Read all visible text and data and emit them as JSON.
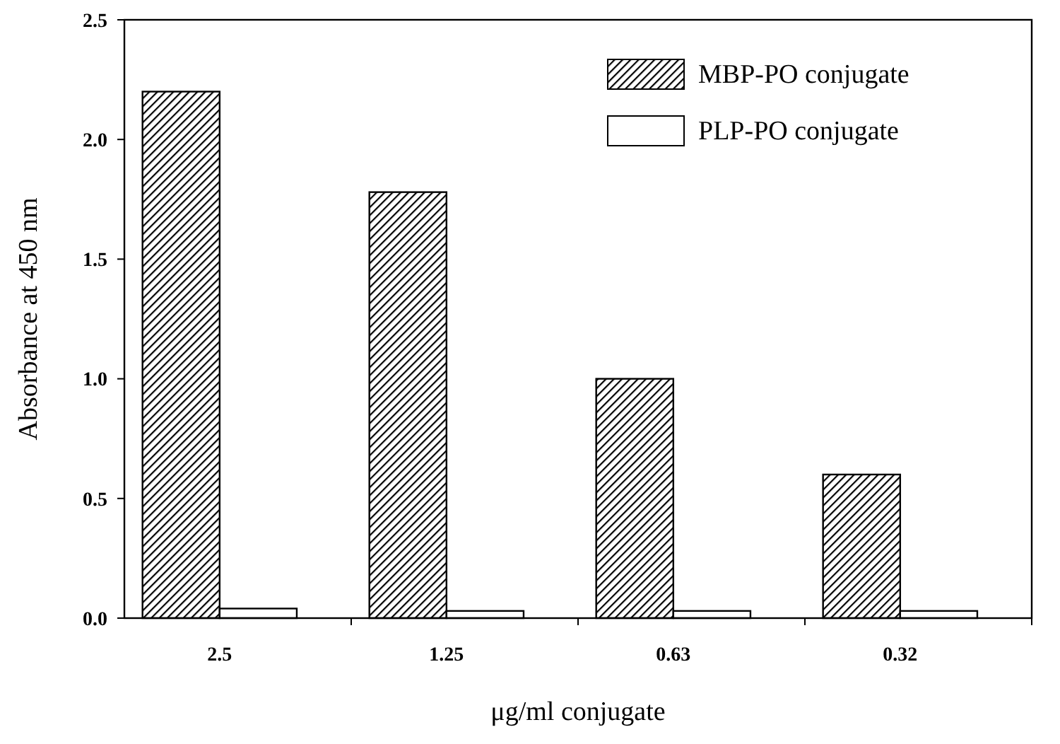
{
  "chart_data": {
    "type": "bar",
    "xlabel": "μg/ml conjugate",
    "ylabel": "Absorbance at 450 nm",
    "categories": [
      "2.5",
      "1.25",
      "0.63",
      "0.32"
    ],
    "series": [
      {
        "name": "MBP-PO conjugate",
        "color": "#000000",
        "values": [
          2.2,
          1.78,
          1.0,
          0.6
        ]
      },
      {
        "name": "PLP-PO conjugate",
        "color": "#ffffff",
        "values": [
          0.04,
          0.03,
          0.03,
          0.03
        ]
      }
    ],
    "ylim": [
      0,
      2.5
    ],
    "yticks": [
      {
        "value": 0,
        "label": "0.0"
      },
      {
        "value": 0.5,
        "label": "0.5"
      },
      {
        "value": 1,
        "label": "1.0"
      },
      {
        "value": 1.5,
        "label": "1.5"
      },
      {
        "value": 2,
        "label": "2.0"
      },
      {
        "value": 2.5,
        "label": "2.5"
      }
    ],
    "legend": "top right",
    "grid": false
  }
}
